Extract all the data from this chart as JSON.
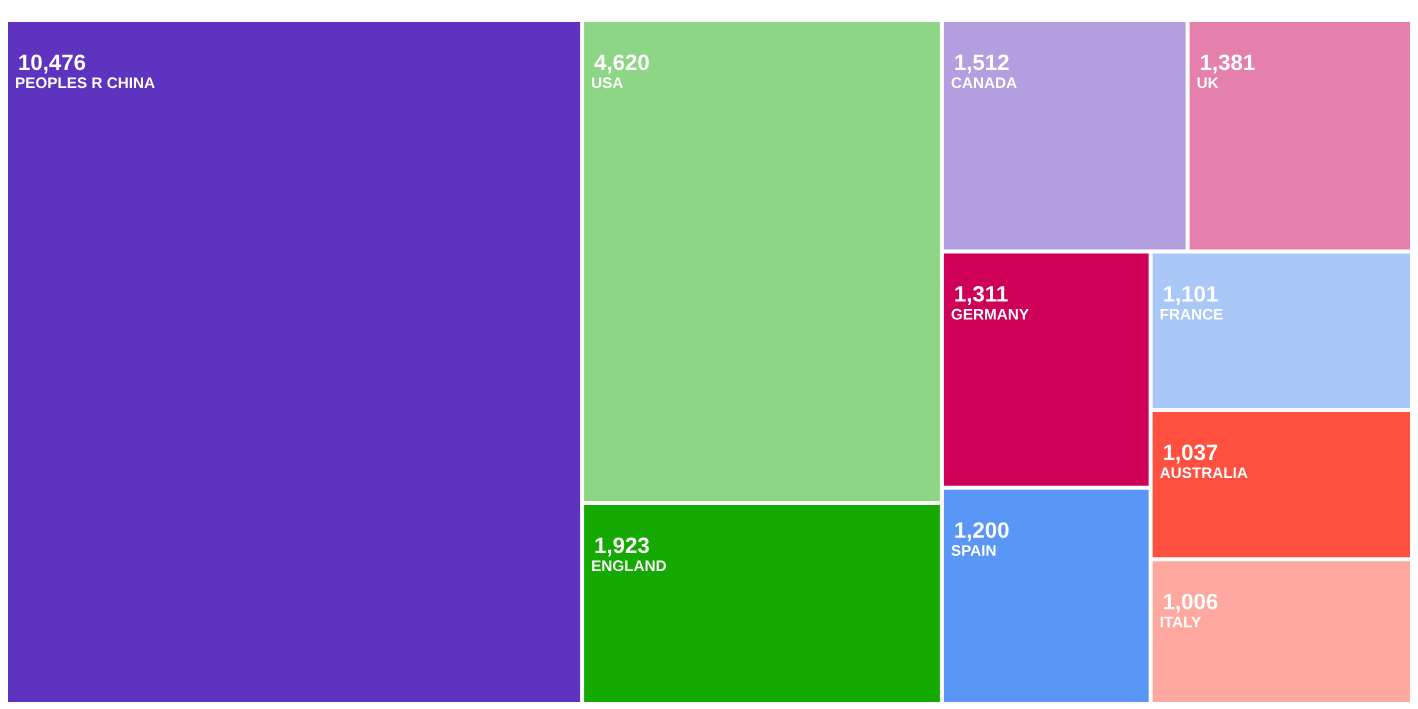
{
  "chart_data": {
    "type": "other",
    "categories": [
      "PEOPLES R CHINA",
      "USA",
      "ENGLAND",
      "CANADA",
      "UK",
      "GERMANY",
      "SPAIN",
      "FRANCE",
      "AUSTRALIA",
      "ITALY"
    ],
    "values": [
      10476,
      4620,
      1923,
      1512,
      1381,
      1311,
      1200,
      1101,
      1037,
      1006
    ],
    "value_labels": [
      "10,476",
      "4,620",
      "1,923",
      "1,512",
      "1,381",
      "1,311",
      "1,200",
      "1,101",
      "1,037",
      "1,006"
    ],
    "colors": [
      "#5e33bf",
      "#8dd685",
      "#14aa02",
      "#b39fdf",
      "#e57fab",
      "#cf0057",
      "#5a96f5",
      "#a9c8f8",
      "#ff5040",
      "#ffa8a0"
    ]
  }
}
